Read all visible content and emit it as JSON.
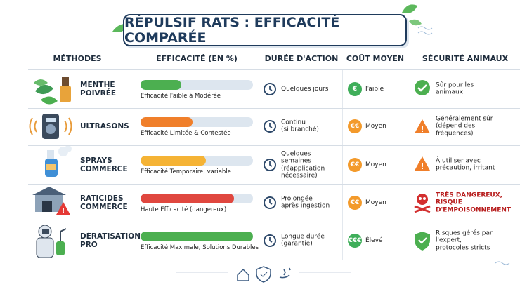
{
  "title": "RÉPULSIF RATS : EFFICACITÉ COMPARÉE",
  "headers": [
    "MÉTHODES",
    "EFFICACITÉ (EN %)",
    "DURÉE D'ACTION",
    "COÛT MOYEN",
    "SÉCURITÉ ANIMAUX"
  ],
  "rows": [
    {
      "method": "MENTHE\nPOIVRÉE",
      "efficacy": 36,
      "efficacy_color": "#4caf50",
      "efficacy_label": "Efficacité Faible à Modérée",
      "duration": "Quelques jours",
      "cost_symbol": "€",
      "cost": "Faible",
      "cost_color": "#3fae5a",
      "safety": "Sûr pour les\nanimaux",
      "safety_color": "#222"
    },
    {
      "method": "ULTRASONS",
      "efficacy": 46,
      "efficacy_color": "#f07f2a",
      "efficacy_label": "Efficacité Limitée & Contestée",
      "duration": "Continu\n(si branché)",
      "cost_symbol": "€€",
      "cost": "Moyen",
      "cost_color": "#f39a2b",
      "safety": "Généralement sûr\n(dépend des\nfréquences)",
      "safety_color": "#222"
    },
    {
      "method": "SPRAYS\nCOMMERCE",
      "efficacy": 58,
      "efficacy_color": "#f5b335",
      "efficacy_label": "Efficacité Temporaire, variable",
      "duration": "Quelques semaines\n(réapplication\nnécessaire)",
      "cost_symbol": "€€",
      "cost": "Moyen",
      "cost_color": "#f39a2b",
      "safety": "À utiliser avec\nprécaution, irritant",
      "safety_color": "#222"
    },
    {
      "method": "RATICIDES\nCOMMERCE",
      "efficacy": 83,
      "efficacy_color": "#e0473f",
      "efficacy_label": "Haute Efficacité (dangereux)",
      "duration": "Prolongée\naprès ingestion",
      "cost_symbol": "€€",
      "cost": "Moyen",
      "cost_color": "#f39a2b",
      "safety": "TRÈS DANGEREUX,\nRISQUE\nD'EMPOISONNEMENT",
      "safety_color": "#b71c1c"
    },
    {
      "method": "DÉRATISATION\nPRO",
      "efficacy": 100,
      "efficacy_color": "#4caf50",
      "efficacy_label": "Efficacité Maximale, Solutions Durables",
      "duration": "Longue durée\n(garantie)",
      "cost_symbol": "€€€",
      "cost": "Élevé",
      "cost_color": "#3fae5a",
      "safety": "Risques gérés par\nl'expert,\nprotocoles stricts",
      "safety_color": "#222"
    }
  ]
}
